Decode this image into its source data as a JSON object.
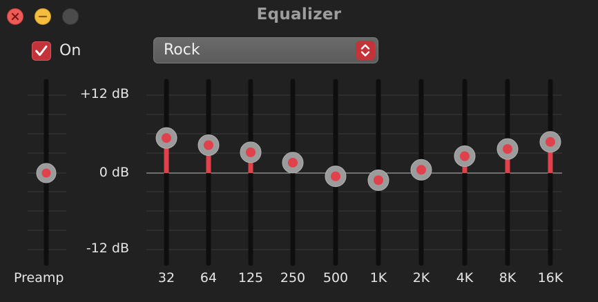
{
  "window": {
    "title": "Equalizer"
  },
  "controls": {
    "on_label": "On",
    "on_checked": true,
    "preset_value": "Rock"
  },
  "scale": {
    "top_label": "+12 dB",
    "mid_label": "0 dB",
    "bottom_label": "-12 dB",
    "max_db": 12,
    "min_db": -12
  },
  "preamp": {
    "label": "Preamp",
    "db": 0
  },
  "bands": [
    {
      "label": "32",
      "db": 5.4
    },
    {
      "label": "64",
      "db": 4.3
    },
    {
      "label": "125",
      "db": 3.2
    },
    {
      "label": "250",
      "db": 1.6
    },
    {
      "label": "500",
      "db": -0.5
    },
    {
      "label": "1K",
      "db": -1.1
    },
    {
      "label": "2K",
      "db": 0.5
    },
    {
      "label": "4K",
      "db": 2.6
    },
    {
      "label": "8K",
      "db": 3.7
    },
    {
      "label": "16K",
      "db": 4.8
    }
  ],
  "colors": {
    "accent": "#e0414a",
    "knob": "#9b9b9b",
    "track": "#0e0e0e",
    "grid": "#3a3a3a"
  }
}
